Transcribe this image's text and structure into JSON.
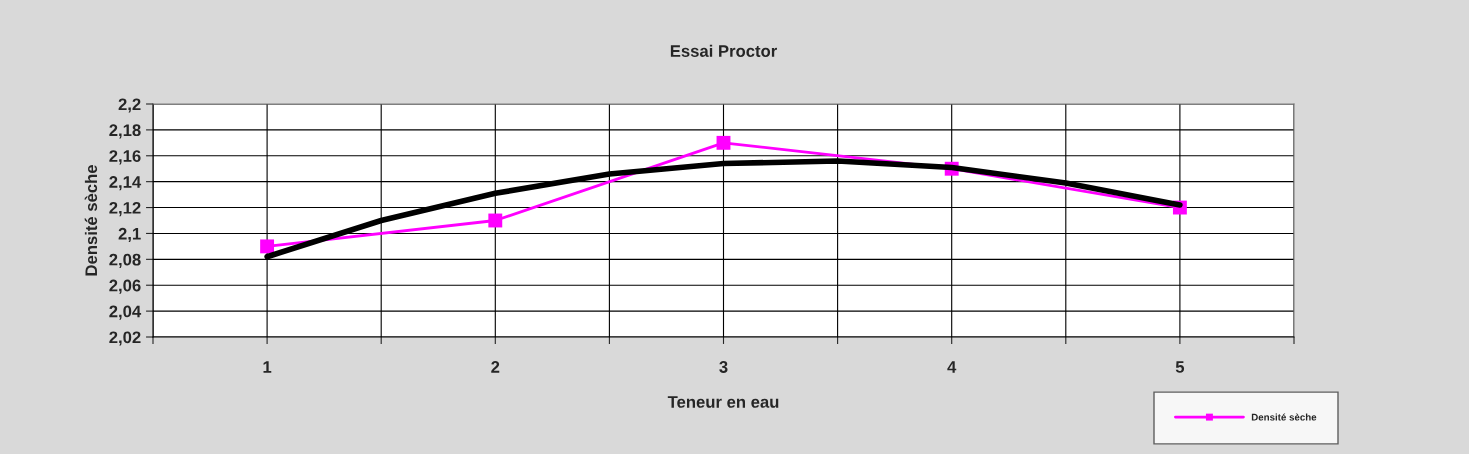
{
  "chart_data": {
    "type": "line",
    "title": "Essai Proctor",
    "xlabel": "Teneur en eau",
    "ylabel": "Densité sèche",
    "x": [
      1,
      2,
      3,
      4,
      5
    ],
    "series": [
      {
        "name": "Densité sèche",
        "color": "#ff00ff",
        "values": [
          2.09,
          2.11,
          2.17,
          2.15,
          2.12
        ],
        "marker": "square"
      },
      {
        "type": "line",
        "color": "#000000",
        "x": [
          1,
          1.5,
          2,
          2.5,
          3,
          3.5,
          4,
          4.5,
          5
        ],
        "values": [
          2.082,
          2.11,
          2.131,
          2.146,
          2.154,
          2.156,
          2.151,
          2.139,
          2.122
        ],
        "marker": "none"
      }
    ],
    "xlim": [
      0.5,
      5.5
    ],
    "xticks": [
      {
        "value": 0.5,
        "label": null
      },
      1,
      {
        "value": 1.5,
        "label": null
      },
      2,
      {
        "value": 2.5,
        "label": null
      },
      3,
      {
        "value": 3.5,
        "label": null
      },
      4,
      {
        "value": 4.5,
        "label": null
      },
      5,
      {
        "value": 5.5,
        "label": null
      }
    ],
    "ylim": [
      2.02,
      2.2
    ],
    "yticks": [
      {
        "value": 2.02,
        "label": "2,02"
      },
      {
        "value": 2.04,
        "label": "2,04"
      },
      {
        "value": 2.06,
        "label": "2,06"
      },
      {
        "value": 2.08,
        "label": "2,08"
      },
      {
        "value": 2.1,
        "label": "2,1"
      },
      {
        "value": 2.12,
        "label": "2,12"
      },
      {
        "value": 2.14,
        "label": "2,14"
      },
      {
        "value": 2.16,
        "label": "2,16"
      },
      {
        "value": 2.18,
        "label": "2,18"
      },
      {
        "value": 2.2,
        "label": "2,2"
      }
    ],
    "grid": true,
    "legend": "bottom right",
    "line_style": "solid"
  }
}
